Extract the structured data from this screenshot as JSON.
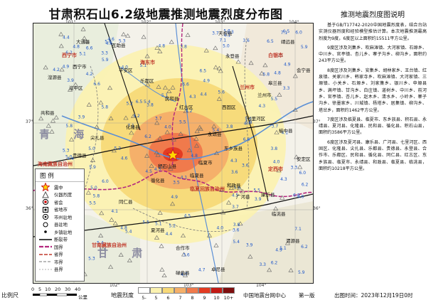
{
  "title": "甘肃积石山6.2级地震推测地震烈度分布图",
  "panel": {
    "title": "推测地震烈度图说明",
    "paragraphs": [
      "基于GB/T17742-2020中国地震烈度表，结合台站实测仪器烈度和经验模型推估计算。本次地震推测最高烈度为9度，6度区以上面积约15511平方公里。",
      "9度区涉及刘集乡、吹麻滩镇、大河家镇、石塬乡、中川乡、官亭镇、杏儿乡、寨子沟乡、柳沟乡，面积约243平方公里。",
      "8度区涉及刘集乡、安集乡、胡林家乡、王台镇、红泉镇、关家川乡、韩家寺乡、吹麻滩镇、大河家镇、三塬镇、小关乡、石塬乡、刘家集乡、银川乡、申塬县乡、满坪镇、甘沟乡、白庄镇、道树乡、中川乡、前河乡、官亭镇、杏儿乡、赵木乡、清水乡、小岭乡、寨子沟乡、徐墨家乡、川城镇、杨塔乡、居集镇、柳沟乡、塔岔乡，面积约1462平方公里。",
      "7度区涉及临夏县、临夏市、东乡族县、积石县、永靖县、夏河县、化隆县、民和县、循化县、积石山县，面积约3586平方公里。",
      "6度区涉及夏河县、康乐县、广河县、七里河区、西固区、化隆县、尖扎县、乐都县、贵德县、永登县、合作市、乐都区、民和县、循化县、同仁县、红古区、东乡族县、临夏市、永靖县、和政县、临夏县、临洮县，面积约10218平方公里。"
    ]
  },
  "legend": {
    "title": "图 例",
    "items": [
      {
        "label": "震中",
        "icon": "epicenter-star-icon"
      },
      {
        "label": "仪器烈度",
        "icon": "instrument-triangle-icon"
      },
      {
        "label": "省会",
        "icon": "provincial-capital-icon"
      },
      {
        "label": "省地市",
        "icon": "prefecture-city-icon"
      },
      {
        "label": "市州驻地",
        "icon": "city-seat-icon"
      },
      {
        "label": "县驻地",
        "icon": "county-seat-icon"
      },
      {
        "label": "乡镇驻地",
        "icon": "township-seat-icon"
      },
      {
        "label": "断裂带",
        "icon": "fault-line-icon"
      },
      {
        "label": "国界",
        "icon": "national-border-icon"
      },
      {
        "label": "省界",
        "icon": "provincial-border-icon"
      },
      {
        "label": "市界",
        "icon": "city-border-icon"
      },
      {
        "label": "县界",
        "icon": "county-border-icon"
      }
    ]
  },
  "coords": {
    "top": [
      "101°",
      "102°",
      "103°",
      "104°"
    ],
    "bottom": [
      "102°",
      "103°",
      "104°"
    ],
    "left": [
      "37°",
      "36°"
    ],
    "right": [
      "37°",
      "36°"
    ]
  },
  "map_labels": {
    "regions": [
      "青海省",
      "甘肃省",
      "海南藏族自治州",
      "甘南藏族自治州",
      "临夏回族自治州",
      "海东市",
      "西宁市",
      "兰州市",
      "白银市",
      "定西市"
    ],
    "places": [
      "天祝县",
      "永登县",
      "皋兰县",
      "靖远县",
      "兰州市",
      "西宁市",
      "湟中区",
      "平安区",
      "乐都区",
      "民和县",
      "化隆县",
      "循化县",
      "尖扎县",
      "贵德县",
      "同仁县",
      "泽库县",
      "夏河县",
      "合作市",
      "临夏县",
      "临夏市",
      "东乡族县",
      "永靖县",
      "积石山县",
      "和政县",
      "康乐县",
      "广河县",
      "临洮县",
      "渭源县",
      "榆中县",
      "会宁县",
      "安定区",
      "卓尼县",
      "碌曲县",
      "红古区",
      "西固区",
      "七里河区",
      "共和县",
      "湟源县",
      "大通县",
      "互助县"
    ],
    "big_letters": [
      "青 海",
      "甘 肃"
    ]
  },
  "bottom": {
    "scale_label": "比例尺",
    "scale_ticks": [
      "0",
      "5",
      "10",
      "20",
      "30",
      "40"
    ],
    "scale_unit": "公里",
    "intensity_label": "地震烈度",
    "intensity_levels": [
      "5-",
      "5",
      "6",
      "7",
      "8",
      "9",
      "10",
      "10+"
    ],
    "intensity_colors": [
      "#ffffff",
      "#fbf2b0",
      "#f7d978",
      "#f5b06a",
      "#f07a4c",
      "#e33b22",
      "#c21a14",
      "#7e0e0e"
    ],
    "org": "中国地震台网中心",
    "edition": "第一版",
    "time": "出图时间：2023年12月19日0时"
  },
  "intensity_values": [
    "3.6",
    "4.0",
    "4.2",
    "4.6",
    "3.8",
    "3.9",
    "4.5",
    "5.0",
    "5.2",
    "4.7",
    "4.9",
    "5.3",
    "6.2",
    "5.1",
    "5.5",
    "4.1",
    "3.5",
    "4.8",
    "5.4",
    "5.8",
    "6.0",
    "6.5",
    "7.1",
    "4.3",
    "3.7",
    "3.3",
    "5.6",
    "4.4",
    "5.9",
    "6.6"
  ]
}
